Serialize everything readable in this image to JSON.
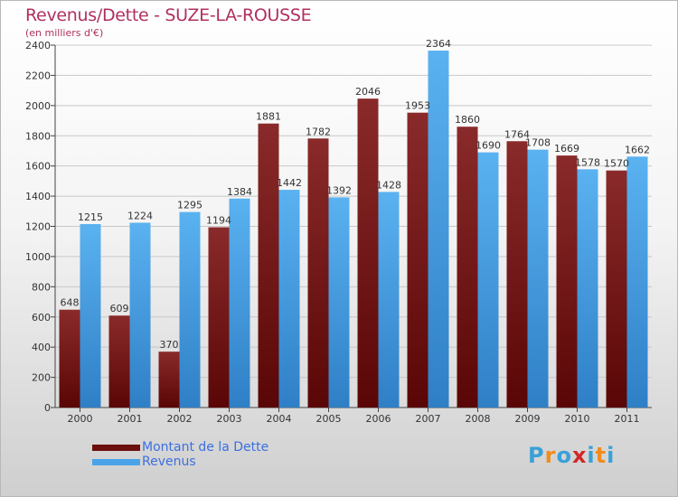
{
  "title": "Revenus/Dette - SUZE-LA-ROUSSE",
  "subtitle": "(en milliers d'€)",
  "logo": {
    "letters": [
      "P",
      "r",
      "o",
      "x",
      "i",
      "t",
      "i"
    ],
    "colors": [
      "#3aa0d8",
      "#f08c1e",
      "#3aa0d8",
      "#d02828",
      "#3aa0d8",
      "#f08c1e",
      "#3aa0d8"
    ]
  },
  "legend": [
    {
      "label": "Montant de la Dette",
      "color": "#6b0f0f"
    },
    {
      "label": "Revenus",
      "color": "#4aa3e8"
    }
  ],
  "chart_data": {
    "type": "bar",
    "title": "Revenus/Dette - SUZE-LA-ROUSSE",
    "subtitle": "(en milliers d'€)",
    "categories": [
      "2000",
      "2001",
      "2002",
      "2003",
      "2004",
      "2005",
      "2006",
      "2007",
      "2008",
      "2009",
      "2010",
      "2011"
    ],
    "series": [
      {
        "name": "Montant de la Dette",
        "color": "#6b0f0f",
        "values": [
          648,
          609,
          370,
          1194,
          1881,
          1782,
          2046,
          1953,
          1860,
          1764,
          1669,
          1570
        ]
      },
      {
        "name": "Revenus",
        "color": "#4aa3e8",
        "values": [
          1215,
          1224,
          1295,
          1384,
          1442,
          1392,
          1428,
          2364,
          1690,
          1708,
          1578,
          1662
        ]
      }
    ],
    "ylim": [
      0,
      2400
    ],
    "yticks": [
      0,
      200,
      400,
      600,
      800,
      1000,
      1200,
      1400,
      1600,
      1800,
      2000,
      2200,
      2400
    ],
    "grid": true,
    "legend_position": "bottom-left"
  }
}
